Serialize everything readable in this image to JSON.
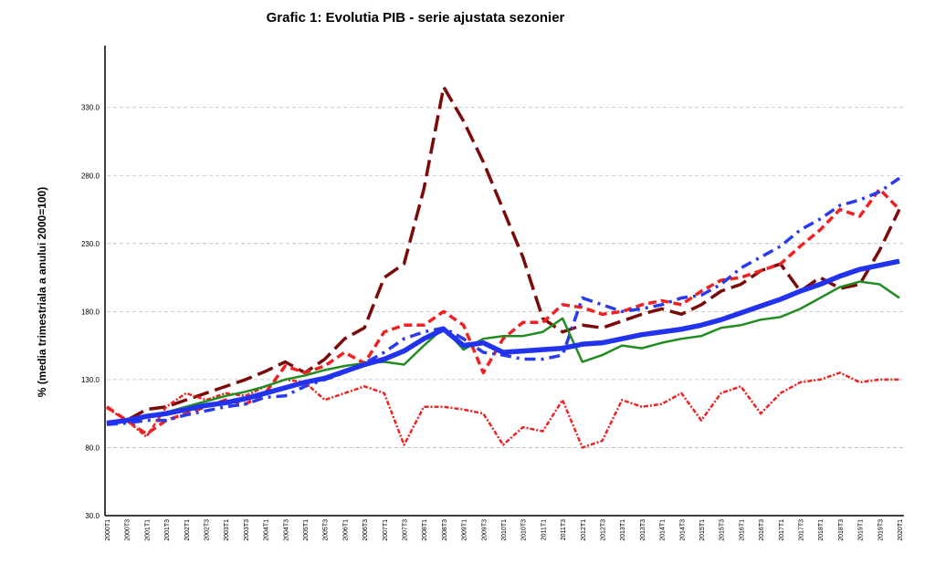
{
  "chart_data": {
    "type": "line",
    "title": "Grafic 1: Evolutia PIB - serie ajustata sezonier",
    "y_label": "% (media trimestriala a anului 2000=100)",
    "categories": [
      "2000T1",
      "2000T3",
      "2001T1",
      "2001T3",
      "2002T1",
      "2002T3",
      "2003T1",
      "2003T3",
      "2004T1",
      "2004T3",
      "2005T1",
      "2005T3",
      "2006T1",
      "2006T3",
      "2007T1",
      "2007T3",
      "2008T1",
      "2008T3",
      "2009T1",
      "2009T3",
      "2010T1",
      "2010T3",
      "2011T1",
      "2011T3",
      "2012T1",
      "2012T3",
      "2013T1",
      "2013T3",
      "2014T1",
      "2014T3",
      "2015T1",
      "2015T3",
      "2016T1",
      "2016T3",
      "2017T1",
      "2017T3",
      "2018T1",
      "2018T3",
      "2019T1",
      "2019T3",
      "2020T1"
    ],
    "ylim": [
      30,
      360
    ],
    "yticks": [
      {
        "value": 30,
        "label": "30.0"
      },
      {
        "value": 80,
        "label": "80.0"
      },
      {
        "value": 130,
        "label": "130.0"
      },
      {
        "value": 180,
        "label": "180.0"
      },
      {
        "value": 230,
        "label": "230.0"
      },
      {
        "value": 280,
        "label": "280.0"
      },
      {
        "value": 330,
        "label": "330.0"
      }
    ],
    "grid": true,
    "series": [
      {
        "color": "#7b0a0a",
        "line_style": "long-dash",
        "values": [
          97,
          100,
          108,
          110,
          115,
          120,
          125,
          130,
          136,
          143,
          135,
          145,
          160,
          168,
          205,
          215,
          270,
          345,
          320,
          290,
          255,
          220,
          175,
          165,
          170,
          168,
          173,
          178,
          182,
          178,
          185,
          195,
          200,
          210,
          215,
          195,
          205,
          197,
          200,
          225,
          255
        ]
      },
      {
        "color": "#ee2222",
        "line_style": "dash",
        "values": [
          110,
          100,
          90,
          100,
          105,
          110,
          115,
          112,
          120,
          140,
          135,
          140,
          150,
          142,
          165,
          170,
          170,
          180,
          170,
          135,
          160,
          172,
          172,
          185,
          183,
          178,
          180,
          185,
          188,
          185,
          195,
          203,
          205,
          210,
          215,
          228,
          240,
          255,
          250,
          270,
          255
        ]
      },
      {
        "color": "#2a3be8",
        "line_style": "dash-dot",
        "values": [
          97,
          98,
          100,
          100,
          104,
          107,
          110,
          112,
          117,
          118,
          125,
          130,
          135,
          142,
          150,
          160,
          165,
          168,
          160,
          150,
          148,
          145,
          145,
          148,
          190,
          185,
          180,
          182,
          185,
          190,
          192,
          200,
          212,
          220,
          228,
          240,
          248,
          258,
          262,
          268,
          278
        ]
      },
      {
        "color": "#ee2222",
        "line_style": "dot",
        "values": [
          109,
          100,
          88,
          110,
          120,
          115,
          120,
          118,
          125,
          130,
          128,
          115,
          120,
          125,
          120,
          82,
          110,
          110,
          108,
          105,
          82,
          95,
          92,
          115,
          80,
          85,
          115,
          110,
          112,
          120,
          100,
          120,
          125,
          105,
          120,
          128,
          130,
          135,
          128,
          130,
          130
        ]
      },
      {
        "color": "#228b22",
        "line_style": "solid",
        "values": [
          98,
          100,
          102,
          106,
          110,
          114,
          118,
          121,
          125,
          130,
          133,
          137,
          140,
          142,
          143,
          141,
          155,
          168,
          152,
          160,
          162,
          162,
          165,
          175,
          143,
          148,
          155,
          153,
          157,
          160,
          162,
          168,
          170,
          174,
          176,
          182,
          190,
          198,
          202,
          200,
          190
        ]
      },
      {
        "color": "#2233ee",
        "line_style": "thick",
        "values": [
          98,
          100,
          103,
          105,
          108,
          111,
          113,
          116,
          120,
          124,
          128,
          131,
          136,
          141,
          145,
          151,
          160,
          167,
          155,
          157,
          150,
          151,
          152,
          153,
          156,
          157,
          160,
          163,
          165,
          167,
          170,
          174,
          179,
          184,
          189,
          195,
          200,
          206,
          211,
          214,
          217
        ]
      }
    ]
  }
}
